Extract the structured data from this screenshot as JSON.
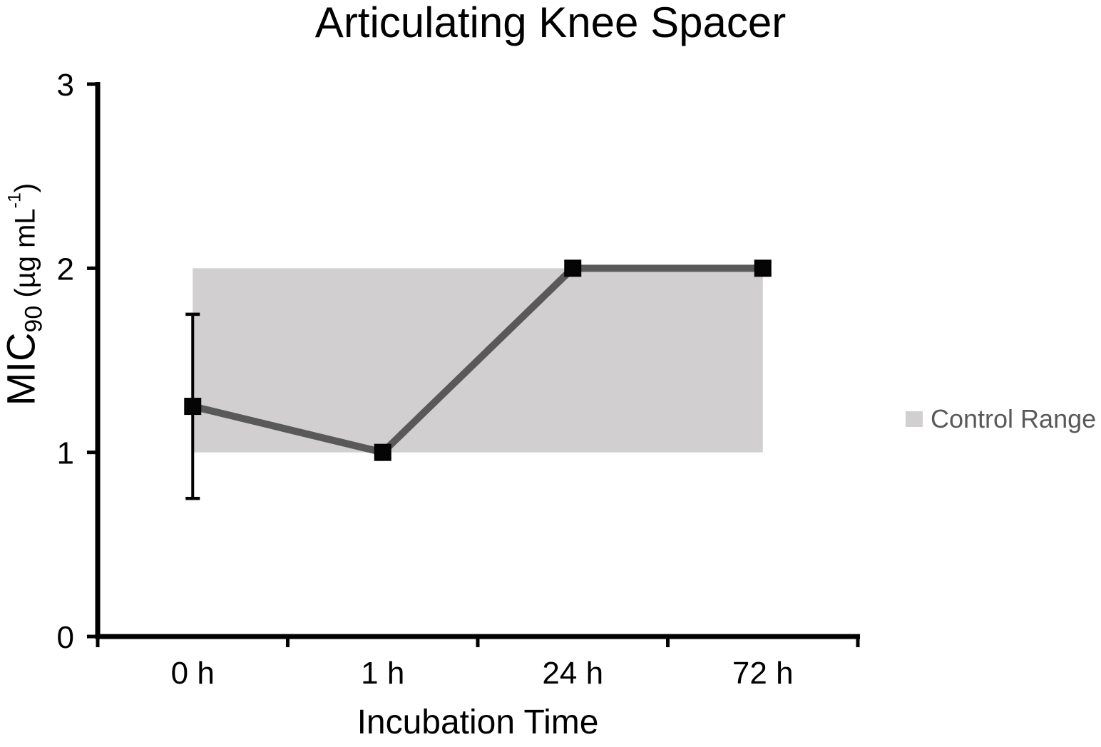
{
  "title": "Articulating Knee Spacer",
  "axes": {
    "y_label_main": "MIC",
    "y_label_sub": "90",
    "y_label_unit_pre": " (µg mL",
    "y_label_unit_sup": "-1",
    "y_label_unit_post": ")",
    "x_label": "Incubation Time"
  },
  "legend": {
    "label": "Control Range",
    "swatch_color": "#d1cfcf",
    "text_color": "#595959"
  },
  "chart_data": {
    "type": "line",
    "title": "Articulating Knee Spacer",
    "xlabel": "Incubation Time",
    "ylabel": "MIC90 (µg mL-1)",
    "categories": [
      "0 h",
      "1 h",
      "24 h",
      "72 h"
    ],
    "series": [
      {
        "name": "MIC90",
        "values": [
          1.25,
          1,
          2,
          2
        ],
        "color": "#595959",
        "line_width": 10,
        "marker": "square",
        "marker_color": "#050505",
        "marker_size": 22
      }
    ],
    "error_bars": [
      {
        "index": 0,
        "category": "0 h",
        "low": 0.75,
        "high": 1.75
      }
    ],
    "control_range": {
      "label": "Control Range",
      "low": 1,
      "high": 2,
      "color": "#d1cfcf"
    },
    "y_ticks": [
      0,
      1,
      2,
      3
    ],
    "ylim": [
      0,
      3
    ],
    "grid": false,
    "legend_position": "right",
    "axis_color": "#000000"
  }
}
